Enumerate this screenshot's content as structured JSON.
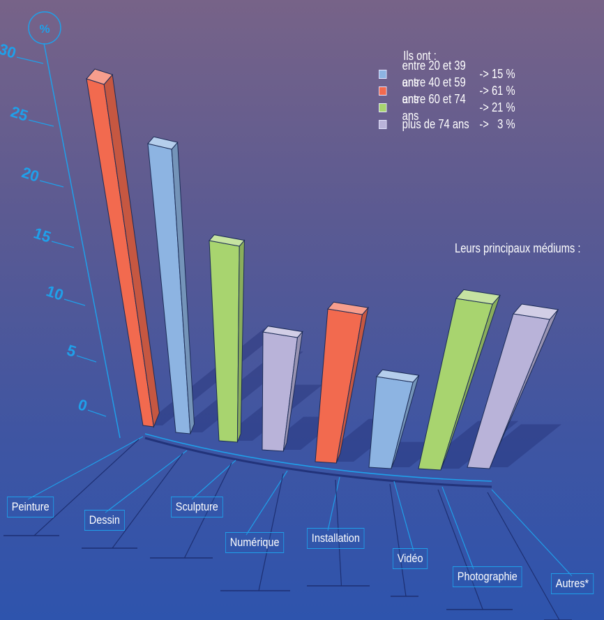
{
  "legend": {
    "title": "Ils ont :",
    "items": [
      {
        "label": "entre 20 et 39 ans",
        "value": "-> 15 %",
        "color": "#8db4e2"
      },
      {
        "label": "entre 40 et 59 ans",
        "value": "-> 61 %",
        "color": "#f26a4f"
      },
      {
        "label": "entre 60 et 74 ans",
        "value": "-> 21 %",
        "color": "#a8d46f"
      },
      {
        "label": "plus de 74 ans",
        "value": "->   3 %",
        "color": "#b9b3d9"
      }
    ]
  },
  "subtitle": "Leurs principaux médiums :",
  "chart_data": {
    "type": "bar",
    "unit": "%",
    "ylim": [
      0,
      30
    ],
    "yticks": [
      "0",
      "5",
      "10",
      "15",
      "20",
      "25",
      "30"
    ],
    "categories": [
      "Peinture",
      "Dessin",
      "Sculpture",
      "Numérique",
      "Installation",
      "Vidéo",
      "Photographie",
      "Autres*"
    ],
    "values": [
      29,
      24,
      17,
      11,
      13,
      9,
      16,
      14
    ],
    "bar_age_group": [
      "entre 40 et 59 ans",
      "entre 20 et 39 ans",
      "entre 60 et 74 ans",
      "plus de 74 ans",
      "entre 40 et 59 ans",
      "entre 20 et 39 ans",
      "entre 60 et 74 ans",
      "plus de 74 ans"
    ],
    "colors": {
      "entre 20 et 39 ans": "#8db4e2",
      "entre 40 et 59 ans": "#f26a4f",
      "entre 60 et 74 ans": "#a8d46f",
      "plus de 74 ans": "#b9b3d9"
    },
    "axis_color": "#1fa0ea"
  }
}
